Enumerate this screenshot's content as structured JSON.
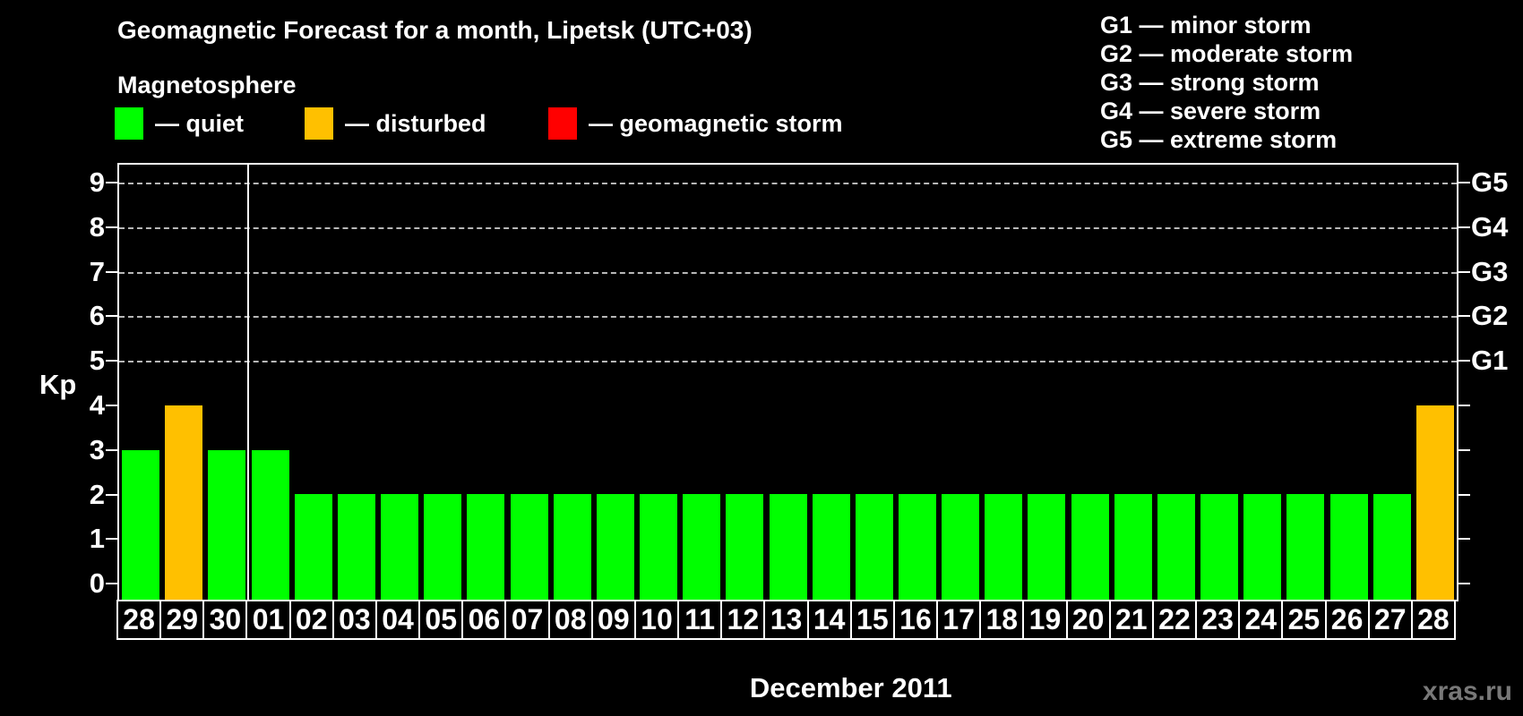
{
  "header": {
    "title": "Geomagnetic Forecast for a month, Lipetsk (UTC+03)"
  },
  "legend": {
    "title": "Magnetosphere",
    "dash": "—",
    "items": [
      {
        "status": "quiet",
        "label": "quiet",
        "color": "#00ff00"
      },
      {
        "status": "disturbed",
        "label": "disturbed",
        "color": "#ffc000"
      },
      {
        "status": "storm",
        "label": "geomagnetic storm",
        "color": "#ff0000"
      }
    ]
  },
  "storm_scale": {
    "dash": "—",
    "items": [
      {
        "code": "G1",
        "label": "minor storm"
      },
      {
        "code": "G2",
        "label": "moderate storm"
      },
      {
        "code": "G3",
        "label": "strong storm"
      },
      {
        "code": "G4",
        "label": "severe storm"
      },
      {
        "code": "G5",
        "label": "extreme storm"
      }
    ]
  },
  "chart_data": {
    "type": "bar",
    "title": "Geomagnetic Forecast for a month, Lipetsk (UTC+03)",
    "ylabel": "Kp",
    "xlabel": "December 2011",
    "categories": [
      "28",
      "29",
      "30",
      "01",
      "02",
      "03",
      "04",
      "05",
      "06",
      "07",
      "08",
      "09",
      "10",
      "11",
      "12",
      "13",
      "14",
      "15",
      "16",
      "17",
      "18",
      "19",
      "20",
      "21",
      "22",
      "23",
      "24",
      "25",
      "26",
      "27",
      "28"
    ],
    "values": [
      3,
      4,
      3,
      3,
      2,
      2,
      2,
      2,
      2,
      2,
      2,
      2,
      2,
      2,
      2,
      2,
      2,
      2,
      2,
      2,
      2,
      2,
      2,
      2,
      2,
      2,
      2,
      2,
      2,
      2,
      4
    ],
    "statuses": [
      "quiet",
      "disturbed",
      "quiet",
      "quiet",
      "quiet",
      "quiet",
      "quiet",
      "quiet",
      "quiet",
      "quiet",
      "quiet",
      "quiet",
      "quiet",
      "quiet",
      "quiet",
      "quiet",
      "quiet",
      "quiet",
      "quiet",
      "quiet",
      "quiet",
      "quiet",
      "quiet",
      "quiet",
      "quiet",
      "quiet",
      "quiet",
      "quiet",
      "quiet",
      "quiet",
      "disturbed"
    ],
    "status_colors": {
      "quiet": "#00ff00",
      "disturbed": "#ffc000",
      "storm": "#ff0000"
    },
    "ylim": [
      0,
      9
    ],
    "yticks": [
      0,
      1,
      2,
      3,
      4,
      5,
      6,
      7,
      8,
      9
    ],
    "gridlines_at": [
      5,
      6,
      7,
      8,
      9
    ],
    "grid_style": "dashed",
    "right_axis_labels": [
      {
        "kp": 5,
        "label": "G1"
      },
      {
        "kp": 6,
        "label": "G2"
      },
      {
        "kp": 7,
        "label": "G3"
      },
      {
        "kp": 8,
        "label": "G4"
      },
      {
        "kp": 9,
        "label": "G5"
      }
    ],
    "month_separator_after_index": 2,
    "legend_position": "top-left"
  },
  "watermark": "xras.ru",
  "colors": {
    "background": "#000000",
    "text": "#ffffff",
    "grid": "#b8b8b8",
    "axis": "#ffffff",
    "watermark": "#787878"
  }
}
